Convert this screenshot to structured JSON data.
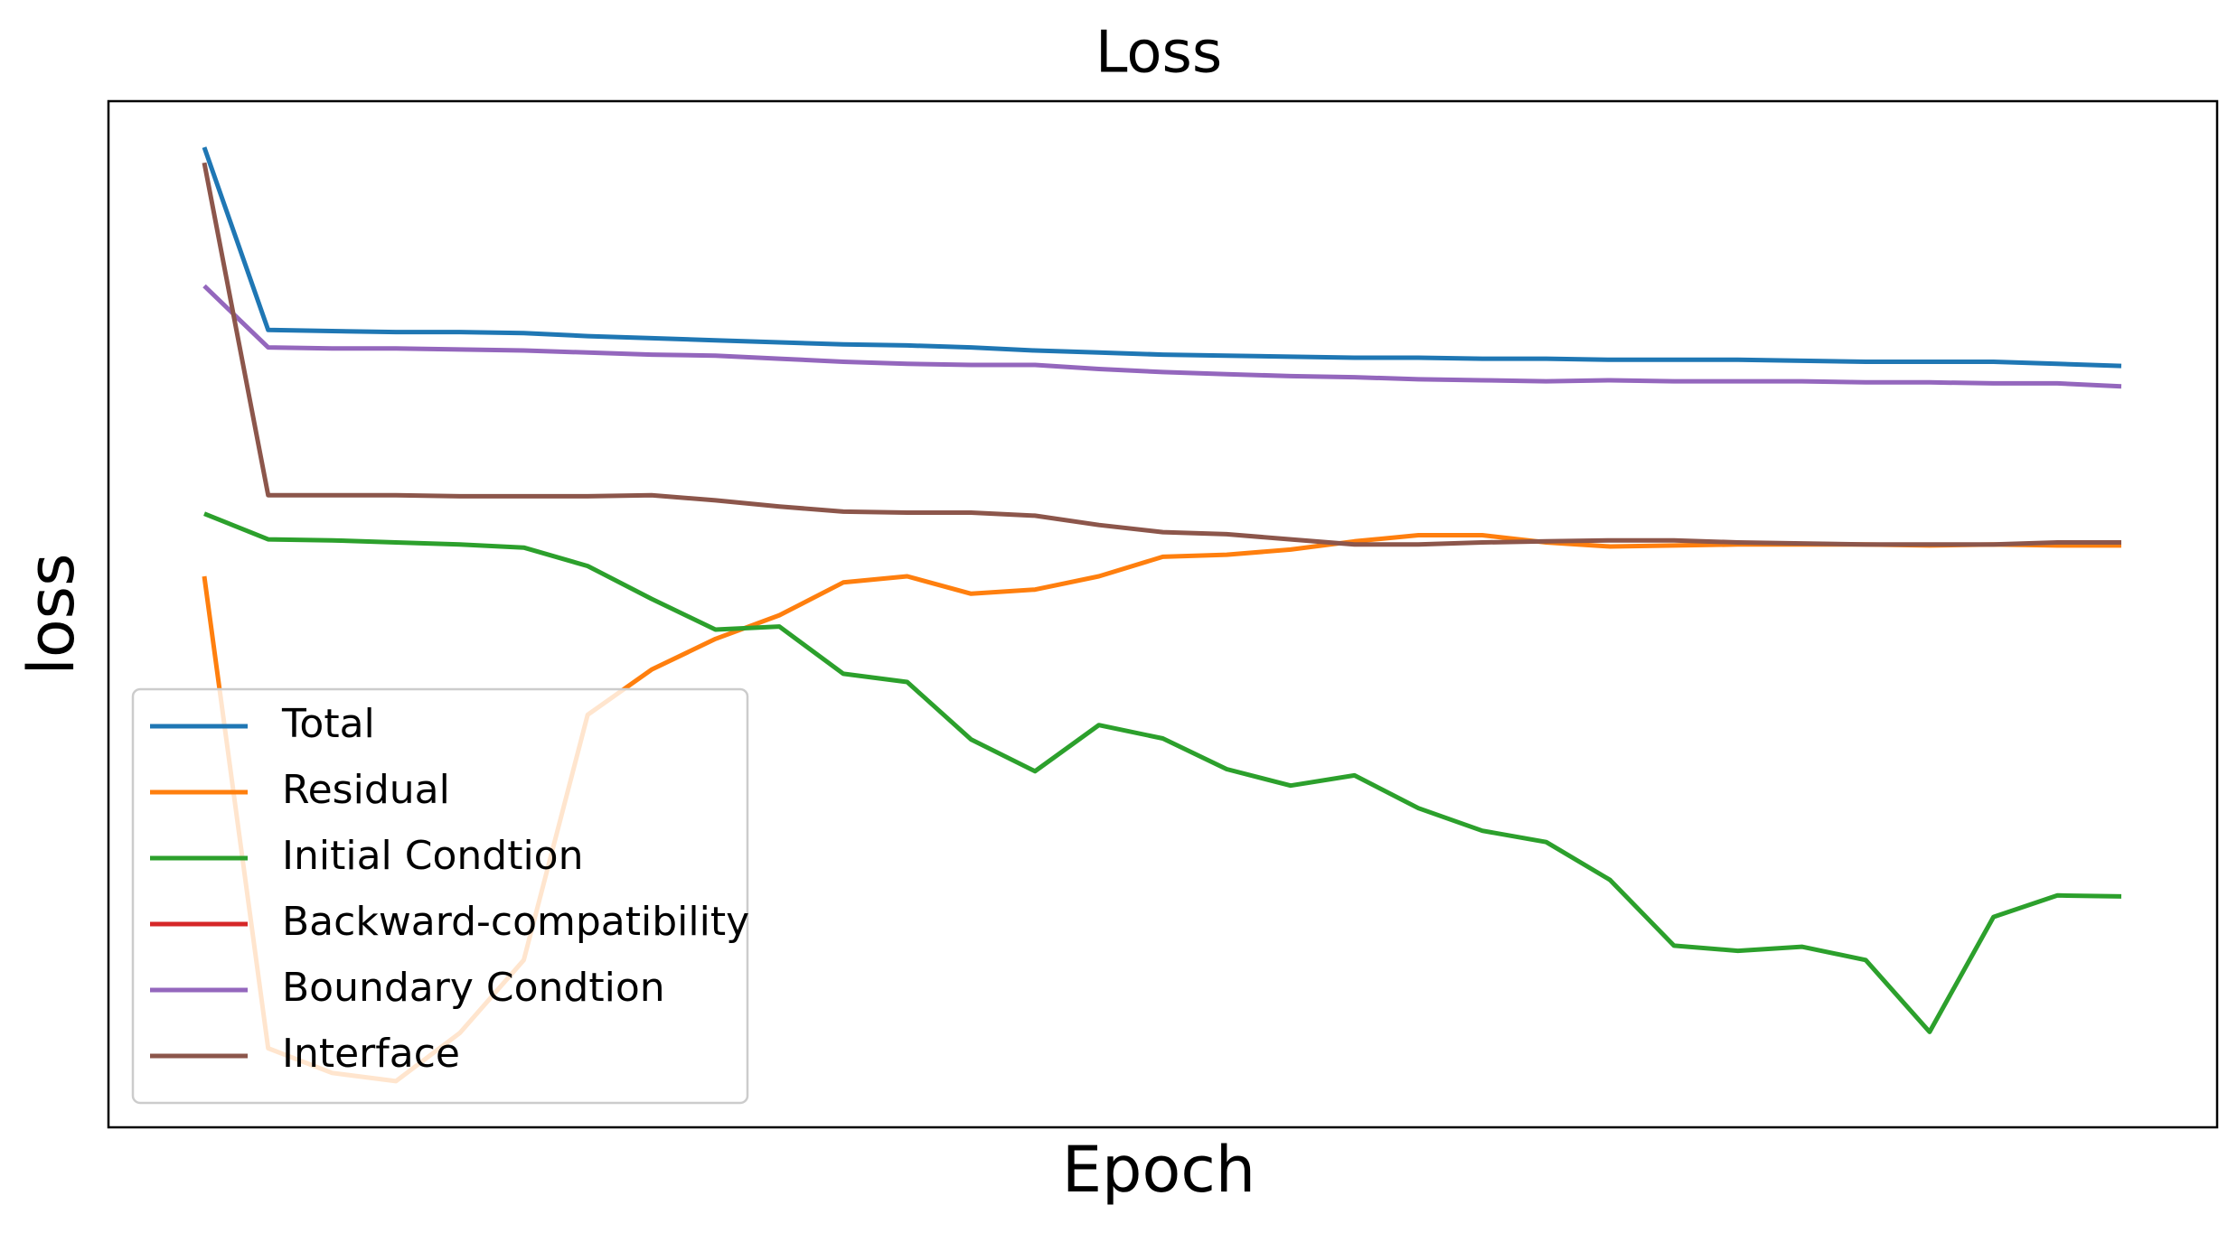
{
  "chart_data": {
    "type": "line",
    "title": "Loss",
    "xlabel": "Epoch",
    "ylabel": "loss",
    "x": [
      0,
      1,
      2,
      3,
      4,
      5,
      6,
      7,
      8,
      9,
      10,
      11,
      12,
      13,
      14,
      15,
      16,
      17,
      18,
      19,
      20,
      21,
      22,
      23,
      24,
      25,
      26,
      27,
      28,
      29,
      30
    ],
    "xlim": [
      -1.5,
      31.5
    ],
    "ylim": [
      0,
      100
    ],
    "grid": false,
    "legend": "lower left",
    "series": [
      {
        "name": "Total",
        "color": "#1f77b4",
        "values": [
          95.5,
          77.7,
          77.6,
          77.5,
          77.5,
          77.4,
          77.1,
          76.9,
          76.7,
          76.5,
          76.3,
          76.2,
          76.0,
          75.7,
          75.5,
          75.3,
          75.2,
          75.1,
          75.0,
          75.0,
          74.9,
          74.9,
          74.8,
          74.8,
          74.8,
          74.7,
          74.6,
          74.6,
          74.6,
          74.4,
          74.2
        ]
      },
      {
        "name": "Residual",
        "color": "#ff7f0e",
        "values": [
          53.7,
          7.7,
          5.3,
          4.5,
          9.2,
          16.3,
          40.2,
          44.6,
          47.6,
          49.9,
          53.1,
          53.7,
          52.0,
          52.4,
          53.7,
          55.6,
          55.8,
          56.3,
          57.1,
          57.7,
          57.7,
          57.0,
          56.6,
          56.7,
          56.8,
          56.8,
          56.8,
          56.7,
          56.8,
          56.7,
          56.7
        ]
      },
      {
        "name": "Initial Condtion",
        "color": "#2ca02c",
        "values": [
          59.8,
          57.3,
          57.2,
          57.0,
          56.8,
          56.5,
          54.7,
          51.5,
          48.5,
          48.8,
          44.2,
          43.4,
          37.8,
          34.7,
          39.2,
          37.9,
          34.9,
          33.3,
          34.3,
          31.1,
          28.9,
          27.8,
          24.1,
          17.7,
          17.2,
          17.6,
          16.3,
          9.3,
          20.5,
          22.6,
          22.5
        ]
      },
      {
        "name": "Backward-compatibility",
        "color": "#d62728",
        "values": [
          null,
          null,
          null,
          null,
          null,
          null,
          null,
          null,
          null,
          null,
          null,
          null,
          null,
          null,
          null,
          null,
          null,
          null,
          null,
          null,
          null,
          null,
          null,
          null,
          null,
          null,
          null,
          null,
          null,
          null,
          null
        ]
      },
      {
        "name": "Boundary Condtion",
        "color": "#9467bd",
        "values": [
          82.0,
          76.0,
          75.9,
          75.9,
          75.8,
          75.7,
          75.5,
          75.3,
          75.2,
          74.9,
          74.6,
          74.4,
          74.3,
          74.3,
          73.9,
          73.6,
          73.4,
          73.2,
          73.1,
          72.9,
          72.8,
          72.7,
          72.8,
          72.7,
          72.7,
          72.7,
          72.6,
          72.6,
          72.5,
          72.5,
          72.2
        ]
      },
      {
        "name": "Interface",
        "color": "#8c564b",
        "values": [
          94.0,
          61.6,
          61.6,
          61.6,
          61.5,
          61.5,
          61.5,
          61.6,
          61.1,
          60.5,
          60.0,
          59.9,
          59.9,
          59.6,
          58.7,
          58.0,
          57.8,
          57.3,
          56.8,
          56.8,
          57.0,
          57.1,
          57.2,
          57.2,
          57.0,
          56.9,
          56.8,
          56.8,
          56.8,
          57.0,
          57.0
        ]
      }
    ]
  }
}
